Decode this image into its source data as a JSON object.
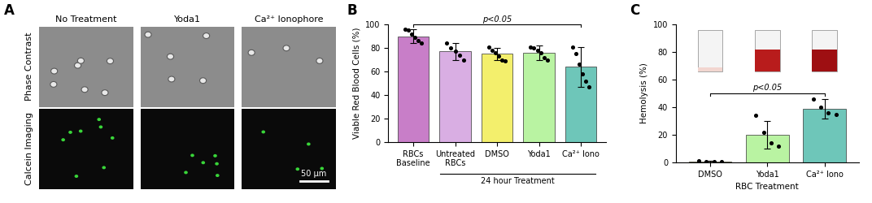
{
  "chart_data": [
    {
      "type": "image_grid",
      "panel": "A",
      "columns": [
        "No Treatment",
        "Yoda1",
        "Ca²⁺ Ionophore"
      ],
      "rows": [
        "Phase Contrast",
        "Calcein Imaging"
      ],
      "scale_bar": "50 μm"
    },
    {
      "type": "bar",
      "panel": "B",
      "categories": [
        "RBCs Baseline",
        "Untreated RBCs",
        "DMSO",
        "Yoda1",
        "Ca²⁺ Iono"
      ],
      "values": [
        90,
        77,
        75,
        76,
        64
      ],
      "error": [
        6,
        7,
        5,
        6,
        17
      ],
      "points": [
        [
          96,
          95,
          92,
          89,
          86,
          84
        ],
        [
          84,
          80,
          77,
          74,
          70
        ],
        [
          81,
          78,
          76,
          73,
          70,
          69
        ],
        [
          81,
          80,
          78,
          76,
          72,
          70
        ],
        [
          81,
          75,
          66,
          58,
          52,
          47
        ]
      ],
      "colors": [
        "#c87ec8",
        "#d9aee3",
        "#f3ef6c",
        "#b9f3a2",
        "#6ec6b9"
      ],
      "y_label": "Viable Red Blood Cells (%)",
      "ylim": [
        0,
        100
      ],
      "yticks": [
        0,
        20,
        40,
        60,
        80,
        100
      ],
      "annotations": [
        {
          "text": "p<0.05",
          "from": "RBCs Baseline",
          "to": "Ca²⁺ Iono"
        }
      ],
      "group_label": {
        "text": "24 hour Treatment",
        "from": "Untreated RBCs",
        "to": "Ca²⁺ Iono"
      }
    },
    {
      "type": "bar",
      "panel": "C",
      "categories": [
        "DMSO",
        "Yoda1",
        "Ca²⁺ Iono"
      ],
      "values": [
        0.5,
        20,
        39
      ],
      "error": [
        0.5,
        10,
        7
      ],
      "points": [
        [
          1,
          0.5,
          0.3,
          0.8
        ],
        [
          34,
          22,
          14,
          12
        ],
        [
          46,
          40,
          36,
          35
        ]
      ],
      "colors": [
        "#f3ef6c",
        "#b9f3a2",
        "#6ec6b9"
      ],
      "y_label": "Hemolysis (%)",
      "x_label": "RBC Treatment",
      "ylim": [
        0,
        100
      ],
      "yticks": [
        0,
        20,
        40,
        60,
        80,
        100
      ],
      "annotations": [
        {
          "text": "p<0.05",
          "from": "DMSO",
          "to": "Ca²⁺ Iono"
        }
      ]
    }
  ]
}
